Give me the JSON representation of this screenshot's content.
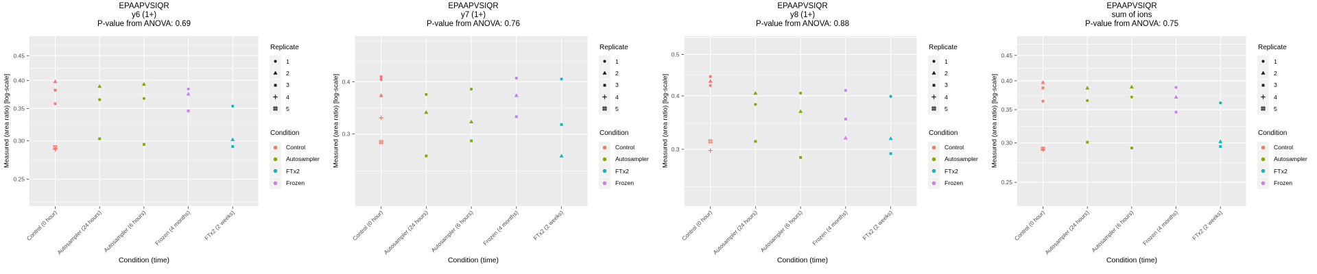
{
  "colors": {
    "panel_bg": "#ebebeb",
    "gridline": "#ffffff",
    "tick_text": "#4d4d4d",
    "tick_mark": "#333333",
    "title_text": "#000000",
    "legend_key_bg": "#f2f2f2",
    "legend_glyph": "#1a1a1a"
  },
  "axes": {
    "ylabel": "Measured (area ratio) [log-scale]",
    "xlabel": "Condition (time)",
    "categories": [
      "Control (0 hour)",
      "Autosampler (24 hours)",
      "Autosampler (6 hours)",
      "Frozen (4 months)",
      "FTx2 (2 weeks)"
    ]
  },
  "legend": {
    "replicate_title": "Replicate",
    "replicates": [
      {
        "label": "1",
        "shape": "circle"
      },
      {
        "label": "2",
        "shape": "triangle"
      },
      {
        "label": "3",
        "shape": "square"
      },
      {
        "label": "4",
        "shape": "plus"
      },
      {
        "label": "5",
        "shape": "square-cross"
      }
    ],
    "condition_title": "Condition",
    "conditions": [
      {
        "label": "Control",
        "color": "#f8766d"
      },
      {
        "label": "Autosampler",
        "color": "#7cae00"
      },
      {
        "label": "FTx2",
        "color": "#00bfc4"
      },
      {
        "label": "Frozen",
        "color": "#c77cff"
      }
    ]
  },
  "chart_data": [
    {
      "type": "scatter",
      "title": "EPAAPVSIQR",
      "subtitle": "y6 (1+)",
      "stat_line": "P-value from ANOVA: 0.69",
      "yscale": "log",
      "ylim": [
        0.22,
        0.494
      ],
      "yticks": [
        {
          "value": 0.25,
          "label": "0.25"
        },
        {
          "value": 0.3,
          "label": "0.30"
        },
        {
          "value": 0.35,
          "label": "0.35"
        },
        {
          "value": 0.4,
          "label": "0.40"
        },
        {
          "value": 0.45,
          "label": "0.45"
        }
      ],
      "minor_gridlines": [
        0.224,
        0.274,
        0.324,
        0.374,
        0.424,
        0.474
      ],
      "groups": [
        {
          "category": "Control (0 hour)",
          "condition": "Control",
          "values": {
            "1": 0.358,
            "2": 0.398,
            "3": 0.382,
            "4": 0.288,
            "5": 0.291
          }
        },
        {
          "category": "Autosampler (24 hours)",
          "condition": "Autosampler",
          "values": {
            "1": 0.365,
            "2": 0.389,
            "3": 0.303
          }
        },
        {
          "category": "Autosampler (6 hours)",
          "condition": "Autosampler",
          "values": {
            "1": 0.367,
            "2": 0.393,
            "3": 0.295
          }
        },
        {
          "category": "Frozen (4 months)",
          "condition": "Frozen",
          "values": {
            "1": 0.384,
            "2": 0.375,
            "3": 0.346
          }
        },
        {
          "category": "FTx2 (2 weeks)",
          "condition": "FTx2",
          "values": {
            "1": 0.354,
            "2": 0.302,
            "3": 0.292
          }
        }
      ]
    },
    {
      "type": "scatter",
      "title": "EPAAPVSIQR",
      "subtitle": "y7 (1+)",
      "stat_line": "P-value from ANOVA: 0.76",
      "yscale": "log",
      "ylim": [
        0.202,
        0.514
      ],
      "yticks": [
        {
          "value": 0.3,
          "label": "0.3"
        },
        {
          "value": 0.4,
          "label": "0.4"
        }
      ],
      "minor_gridlines": [
        0.245,
        0.346,
        0.447,
        0.5
      ],
      "groups": [
        {
          "category": "Control (0 hour)",
          "condition": "Control",
          "values": {
            "1": 0.405,
            "2": 0.371,
            "3": 0.411,
            "4": 0.328,
            "5": 0.287
          }
        },
        {
          "category": "Autosampler (24 hours)",
          "condition": "Autosampler",
          "values": {
            "1": 0.373,
            "2": 0.338,
            "3": 0.266
          }
        },
        {
          "category": "Autosampler (6 hours)",
          "condition": "Autosampler",
          "values": {
            "1": 0.384,
            "2": 0.321,
            "3": 0.289
          }
        },
        {
          "category": "Frozen (4 months)",
          "condition": "Frozen",
          "values": {
            "1": 0.408,
            "2": 0.371,
            "3": 0.33
          }
        },
        {
          "category": "FTx2 (2 weeks)",
          "condition": "FTx2",
          "values": {
            "1": 0.406,
            "2": 0.266,
            "3": 0.316
          }
        }
      ]
    },
    {
      "type": "scatter",
      "title": "EPAAPVSIQR",
      "subtitle": "y8 (1+)",
      "stat_line": "P-value from ANOVA: 0.88",
      "yscale": "log",
      "ylim": [
        0.221,
        0.552
      ],
      "yticks": [
        {
          "value": 0.3,
          "label": "0.3"
        },
        {
          "value": 0.4,
          "label": "0.4"
        },
        {
          "value": 0.5,
          "label": "0.5"
        }
      ],
      "minor_gridlines": [
        0.245,
        0.346,
        0.447,
        0.548
      ],
      "groups": [
        {
          "category": "Control (0 hour)",
          "condition": "Control",
          "values": {
            "1": 0.423,
            "2": 0.433,
            "3": 0.444,
            "4": 0.298,
            "5": 0.313
          }
        },
        {
          "category": "Autosampler (24 hours)",
          "condition": "Autosampler",
          "values": {
            "1": 0.382,
            "2": 0.406,
            "3": 0.313
          }
        },
        {
          "category": "Autosampler (6 hours)",
          "condition": "Autosampler",
          "values": {
            "1": 0.406,
            "2": 0.368,
            "3": 0.287
          }
        },
        {
          "category": "Frozen (4 months)",
          "condition": "Frozen",
          "values": {
            "1": 0.412,
            "2": 0.319,
            "3": 0.353
          }
        },
        {
          "category": "FTx2 (2 weeks)",
          "condition": "FTx2",
          "values": {
            "1": 0.399,
            "2": 0.318,
            "3": 0.293
          }
        }
      ]
    },
    {
      "type": "scatter",
      "title": "EPAAPVSIQR",
      "subtitle": "sum of ions",
      "stat_line": "P-value from ANOVA: 0.75",
      "yscale": "log",
      "ylim": [
        0.224,
        0.492
      ],
      "yticks": [
        {
          "value": 0.25,
          "label": "0.25"
        },
        {
          "value": 0.3,
          "label": "0.30"
        },
        {
          "value": 0.35,
          "label": "0.35"
        },
        {
          "value": 0.4,
          "label": "0.40"
        },
        {
          "value": 0.45,
          "label": "0.45"
        }
      ],
      "minor_gridlines": [
        0.224,
        0.274,
        0.324,
        0.374,
        0.424,
        0.474
      ],
      "groups": [
        {
          "category": "Control (0 hour)",
          "condition": "Control",
          "values": {
            "1": 0.364,
            "2": 0.397,
            "3": 0.387,
            "4": 0.291,
            "5": 0.292
          }
        },
        {
          "category": "Autosampler (24 hours)",
          "condition": "Autosampler",
          "values": {
            "1": 0.365,
            "2": 0.387,
            "3": 0.301
          }
        },
        {
          "category": "Autosampler (6 hours)",
          "condition": "Autosampler",
          "values": {
            "1": 0.371,
            "2": 0.389,
            "3": 0.293
          }
        },
        {
          "category": "Frozen (4 months)",
          "condition": "Frozen",
          "values": {
            "1": 0.388,
            "2": 0.371,
            "3": 0.346
          }
        },
        {
          "category": "FTx2 (2 weeks)",
          "condition": "FTx2",
          "values": {
            "1": 0.361,
            "2": 0.302,
            "3": 0.295
          }
        }
      ]
    }
  ]
}
